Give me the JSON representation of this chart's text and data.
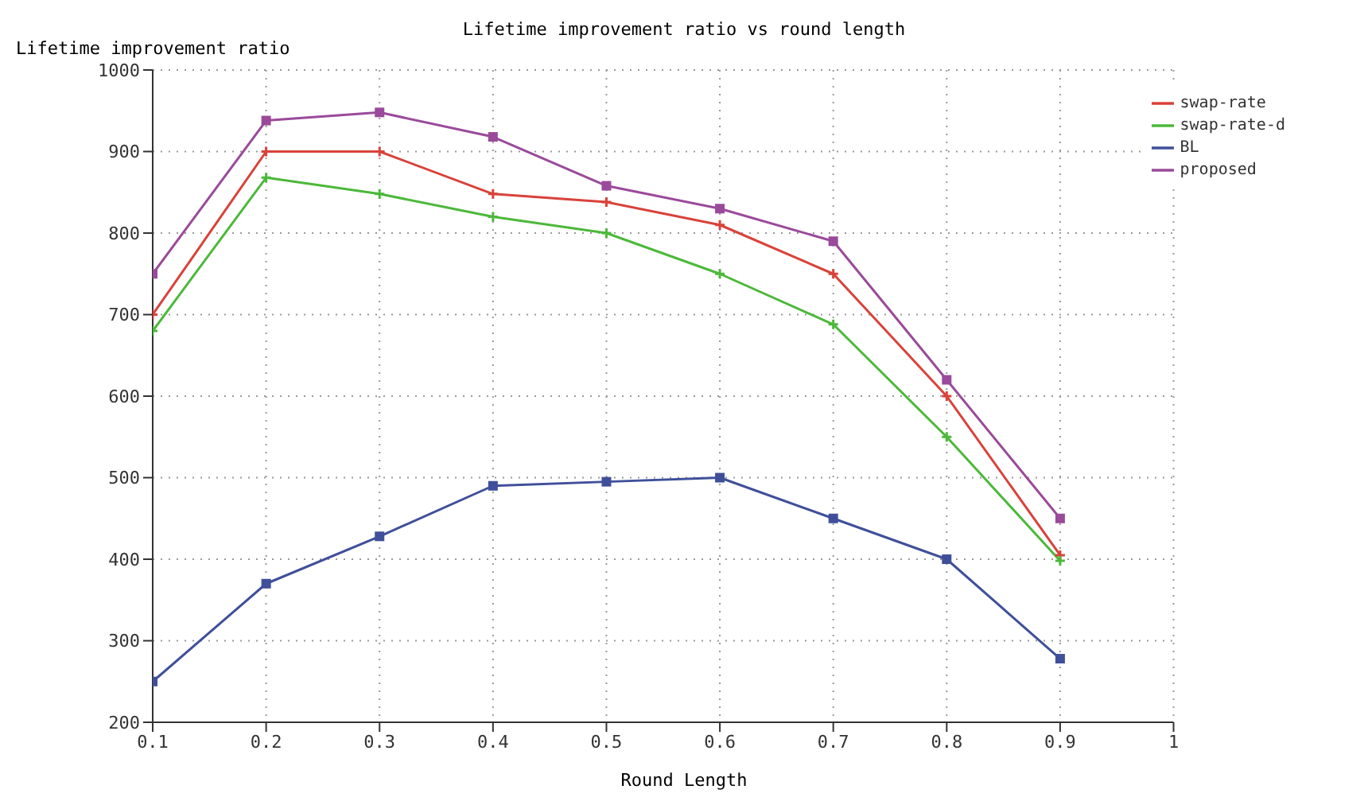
{
  "chart_data": {
    "type": "line",
    "title": "Lifetime improvement ratio vs round length",
    "xlabel": "Round Length",
    "ylabel": "Lifetime improvement ratio",
    "x": [
      0.1,
      0.2,
      0.3,
      0.4,
      0.5,
      0.6,
      0.7,
      0.8,
      0.9
    ],
    "series": [
      {
        "name": "swap-rate",
        "color": "#d9423a",
        "marker": "cross",
        "values": [
          700,
          900,
          900,
          848,
          838,
          810,
          750,
          600,
          405
        ]
      },
      {
        "name": "swap-rate-d",
        "color": "#4cb83a",
        "marker": "cross",
        "values": [
          680,
          868,
          848,
          820,
          800,
          750,
          688,
          550,
          398
        ]
      },
      {
        "name": "BL",
        "color": "#3f4f9a",
        "marker": "square",
        "values": [
          250,
          370,
          428,
          490,
          495,
          500,
          450,
          400,
          278
        ]
      },
      {
        "name": "proposed",
        "color": "#9a4a9a",
        "marker": "square",
        "values": [
          750,
          938,
          948,
          918,
          858,
          830,
          790,
          620,
          450
        ]
      }
    ],
    "xlim": [
      0.1,
      1
    ],
    "xticks": [
      0.1,
      0.2,
      0.3,
      0.4,
      0.5,
      0.6,
      0.7,
      0.8,
      0.9,
      1
    ],
    "ylim": [
      200,
      1000
    ],
    "yticks": [
      200,
      300,
      400,
      500,
      600,
      700,
      800,
      900,
      1000
    ],
    "grid": true,
    "legend": "top right",
    "line_style": "solid"
  }
}
